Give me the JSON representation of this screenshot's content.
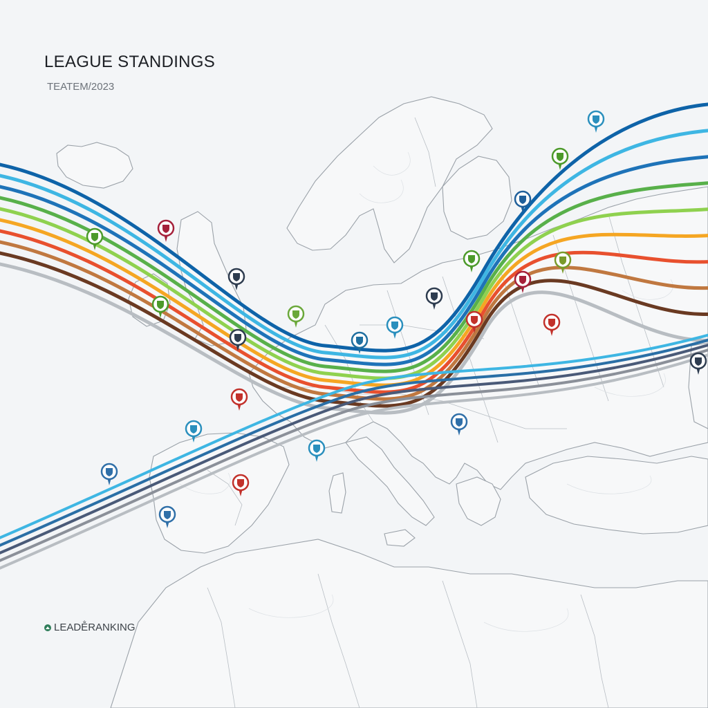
{
  "header": {
    "title": "LEAGUE STANDINGS",
    "subtitle": "TEATEM/2023"
  },
  "footer": {
    "label": "LEADE̐RANKING",
    "icon": "ranking-logo-icon"
  },
  "colors": {
    "background": "#f3f5f7",
    "land_stroke": "#9aa1a8",
    "pin_blue": "#1f5f9a",
    "pin_green": "#4c9a2a",
    "pin_red": "#c2312b",
    "pin_teal": "#2a8fbd",
    "pin_navy": "#2e3c4f"
  },
  "bands": [
    {
      "color": "#0e63a8"
    },
    {
      "color": "#3eb6e3"
    },
    {
      "color": "#1e73b8"
    },
    {
      "color": "#58b04a"
    },
    {
      "color": "#8fd14f"
    },
    {
      "color": "#f5a623"
    },
    {
      "color": "#e8502e"
    },
    {
      "color": "#c07840"
    },
    {
      "color": "#6a3a22"
    },
    {
      "color": "#b8bdc2"
    }
  ],
  "crossing_bands": [
    {
      "color": "#3eb6e3"
    },
    {
      "color": "#2a6fa6"
    },
    {
      "color": "#4a5a78"
    },
    {
      "color": "#8b9099"
    },
    {
      "color": "#b8bdc2"
    }
  ],
  "club_pins": [
    {
      "name": "club-badge-green-pin",
      "color": "#4c9a2a",
      "icon": "crest-icon"
    },
    {
      "name": "club-badge-barcelona-pin",
      "color": "#a5203a",
      "icon": "crest-icon"
    },
    {
      "name": "club-badge-navy-pin",
      "color": "#2e3c4f",
      "icon": "crest-icon"
    },
    {
      "name": "club-badge-green-pin",
      "color": "#4c9a2a",
      "icon": "crest-icon"
    },
    {
      "name": "club-badge-navy-pin",
      "color": "#2e3c4f",
      "icon": "crest-icon"
    },
    {
      "name": "club-badge-green-pin",
      "color": "#6aa83a",
      "icon": "crest-icon"
    },
    {
      "name": "club-badge-blue-pin",
      "color": "#1f6fa0",
      "icon": "crest-icon"
    },
    {
      "name": "club-badge-teal-pin",
      "color": "#2a8fbd",
      "icon": "crest-icon"
    },
    {
      "name": "club-badge-navy-pin",
      "color": "#2e3c4f",
      "icon": "crest-icon"
    },
    {
      "name": "club-badge-red-pin",
      "color": "#c2312b",
      "icon": "crest-icon"
    },
    {
      "name": "club-badge-green-pin",
      "color": "#4c9a2a",
      "icon": "crest-icon"
    },
    {
      "name": "club-badge-red-pin",
      "color": "#a5203a",
      "icon": "crest-icon"
    },
    {
      "name": "club-badge-green-pin",
      "color": "#4c9a2a",
      "icon": "crest-icon"
    },
    {
      "name": "club-badge-red-pin",
      "color": "#c2312b",
      "icon": "crest-icon"
    },
    {
      "name": "club-badge-blue-pin",
      "color": "#1f5f9a",
      "icon": "crest-icon"
    },
    {
      "name": "club-badge-green-pin",
      "color": "#7a9a2a",
      "icon": "crest-icon"
    },
    {
      "name": "club-badge-teal-pin",
      "color": "#2a8fbd",
      "icon": "crest-icon"
    },
    {
      "name": "club-badge-red-pin",
      "color": "#c2312b",
      "icon": "crest-icon"
    },
    {
      "name": "club-badge-teal-pin",
      "color": "#2a8fbd",
      "icon": "crest-icon"
    },
    {
      "name": "club-badge-teal-pin",
      "color": "#2a8fbd",
      "icon": "crest-icon"
    },
    {
      "name": "club-badge-red-pin",
      "color": "#c2312b",
      "icon": "crest-icon"
    },
    {
      "name": "club-badge-blue-pin",
      "color": "#2f6fa8",
      "icon": "crest-icon"
    },
    {
      "name": "club-badge-blue-pin",
      "color": "#2f6fa8",
      "icon": "crest-icon"
    },
    {
      "name": "club-badge-blue-pin",
      "color": "#2f6fa8",
      "icon": "crest-icon"
    },
    {
      "name": "club-badge-navy-pin",
      "color": "#2e3c4f",
      "icon": "crest-icon"
    }
  ]
}
